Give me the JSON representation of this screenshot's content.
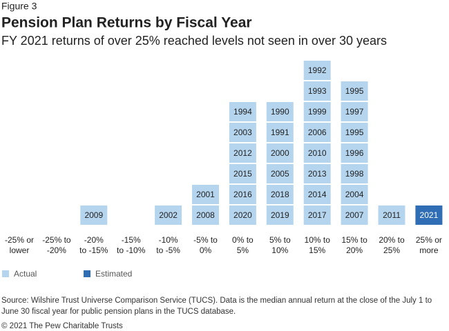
{
  "chart_data": {
    "type": "year-stack",
    "figure": "Figure 3",
    "title": "Pension Plan Returns by Fiscal Year",
    "subtitle": "FY 2021 returns of over 25% reached levels not seen in over 30 years",
    "series": [
      {
        "name": "Actual",
        "color": "#b5d5ef"
      },
      {
        "name": "Estimated",
        "color": "#2f6db5"
      }
    ],
    "bins": [
      {
        "label": [
          "-25% or",
          "lower"
        ],
        "actual": [],
        "estimated": []
      },
      {
        "label": [
          "-25% to",
          "-20%"
        ],
        "actual": [],
        "estimated": []
      },
      {
        "label": [
          "-20%",
          "to -15%"
        ],
        "actual": [
          2009
        ],
        "estimated": []
      },
      {
        "label": [
          "-15%",
          "to -10%"
        ],
        "actual": [],
        "estimated": []
      },
      {
        "label": [
          "-10%",
          "to -5%"
        ],
        "actual": [
          2002
        ],
        "estimated": []
      },
      {
        "label": [
          "-5% to",
          "0%"
        ],
        "actual": [
          2008,
          2001
        ],
        "estimated": []
      },
      {
        "label": [
          "0% to",
          "5%"
        ],
        "actual": [
          2020,
          2016,
          2015,
          2012,
          2003,
          1994
        ],
        "estimated": []
      },
      {
        "label": [
          "5% to",
          "10%"
        ],
        "actual": [
          2019,
          2018,
          2005,
          2000,
          1991,
          1990
        ],
        "estimated": []
      },
      {
        "label": [
          "10% to",
          "15%"
        ],
        "actual": [
          2017,
          2014,
          2013,
          2010,
          2006,
          1999,
          1993,
          1992
        ],
        "estimated": []
      },
      {
        "label": [
          "15% to",
          "20%"
        ],
        "actual": [
          2007,
          2004,
          1998,
          1996,
          1995,
          1997,
          1995
        ],
        "estimated": []
      },
      {
        "label": [
          "20% to",
          "25%"
        ],
        "actual": [
          2011
        ],
        "estimated": []
      },
      {
        "label": [
          "25% or",
          "more"
        ],
        "actual": [],
        "estimated": [
          2021
        ]
      }
    ],
    "source": [
      "Source: Wilshire Trust Universe Comparison Service (TUCS). Data is the median annual return at the close of the July 1 to",
      "June 30 fiscal year for public pension plans in the TUCS database."
    ],
    "copyright": "© 2021 The Pew Charitable Trusts"
  }
}
